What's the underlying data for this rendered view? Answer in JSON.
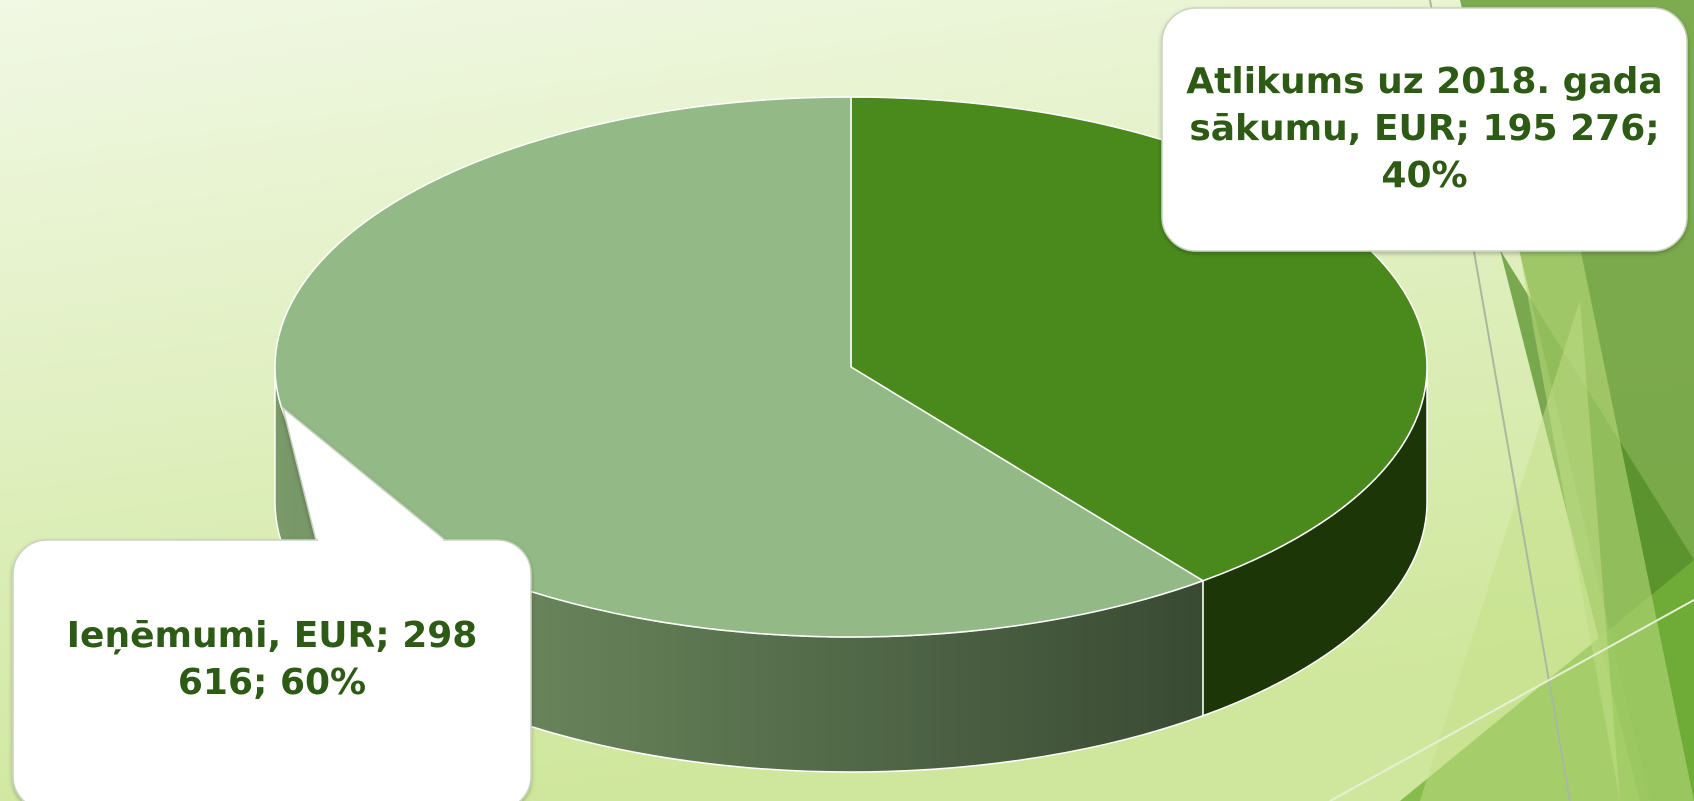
{
  "chart_data": {
    "type": "pie3d",
    "categories": [
      "Atlikums uz 2018. gada sākumu, EUR",
      "Ieņēmumi, EUR"
    ],
    "values": [
      195276,
      298616
    ],
    "data_labels": [
      "Atlikums uz 2018. gada sākumu, EUR; 195 276; 40%",
      "Ieņēmumi, EUR; 298 616; 60%"
    ],
    "colors": [
      "#4a8a1c",
      "#93b987"
    ],
    "side_colors": [
      "#1c3608",
      "#4f6a42"
    ]
  }
}
